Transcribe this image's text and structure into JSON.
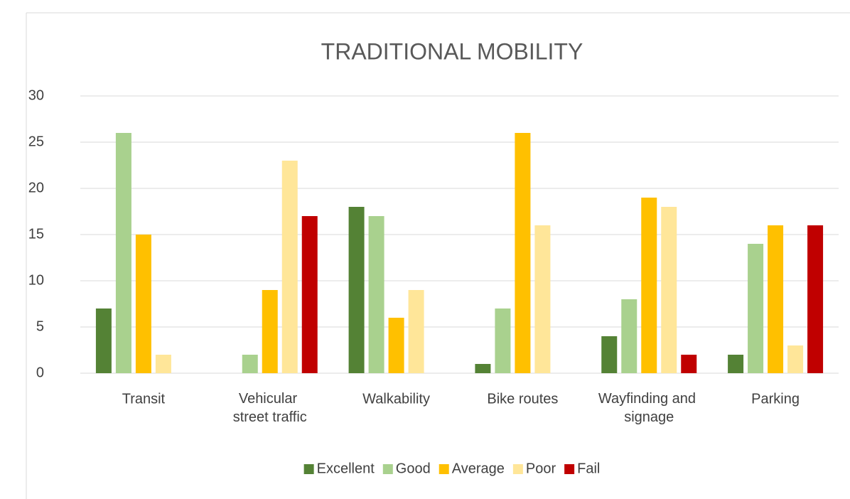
{
  "chart_data": {
    "type": "bar",
    "title": "TRADITIONAL MOBILITY",
    "categories": [
      "Transit",
      "Vehicular street traffic",
      "Walkability",
      "Bike routes",
      "Wayfinding and signage",
      "Parking"
    ],
    "series": [
      {
        "name": "Excellent",
        "color": "#548235",
        "values": [
          7,
          0,
          18,
          1,
          4,
          2
        ]
      },
      {
        "name": "Good",
        "color": "#a9d18e",
        "values": [
          26,
          2,
          17,
          7,
          8,
          14
        ]
      },
      {
        "name": "Average",
        "color": "#ffc000",
        "values": [
          15,
          9,
          6,
          26,
          19,
          16
        ]
      },
      {
        "name": "Poor",
        "color": "#ffe699",
        "values": [
          2,
          23,
          9,
          16,
          18,
          3
        ]
      },
      {
        "name": "Fail",
        "color": "#c00000",
        "values": [
          0,
          17,
          0,
          0,
          2,
          16
        ]
      }
    ],
    "ylim": [
      0,
      30
    ],
    "yticks": [
      0,
      5,
      10,
      15,
      20,
      25,
      30
    ],
    "grid": true,
    "legend": "bottom"
  }
}
